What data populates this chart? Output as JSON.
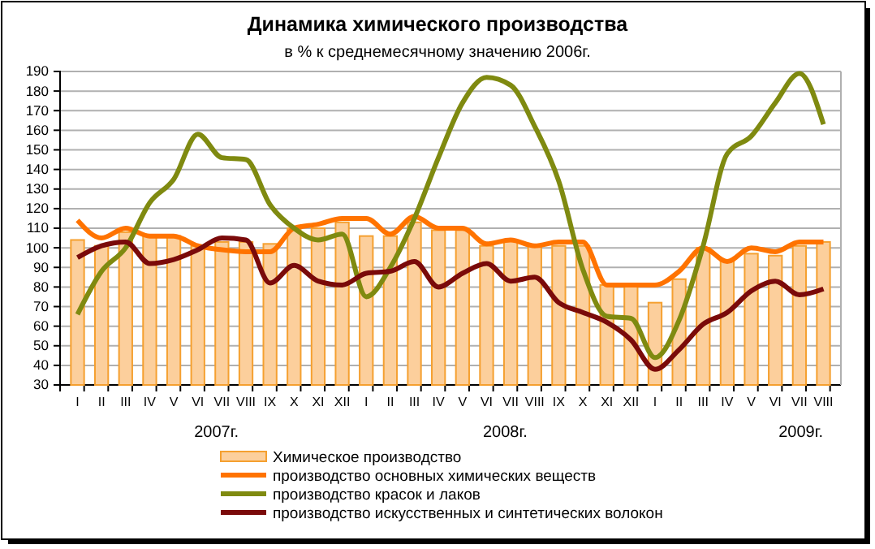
{
  "chart_data": {
    "type": "bar",
    "title": "Динамика химического производства",
    "subtitle": "в % к среднемесячному значению 2006г.",
    "categories": [
      "I",
      "II",
      "III",
      "IV",
      "V",
      "VI",
      "VII",
      "VIII",
      "IX",
      "X",
      "XI",
      "XII",
      "I",
      "II",
      "III",
      "IV",
      "V",
      "VI",
      "VII",
      "VIII",
      "IX",
      "X",
      "XI",
      "XII",
      "I",
      "II",
      "III",
      "IV",
      "V",
      "VI",
      "VII",
      "VIII"
    ],
    "series": [
      {
        "name": "Химическое производство",
        "color": "#fccf9c",
        "values": [
          104,
          101,
          108,
          106,
          106,
          101,
          103,
          103,
          102,
          110,
          110,
          113,
          106,
          106,
          113,
          109,
          109,
          101,
          104,
          101,
          101,
          101,
          81,
          81,
          72,
          84,
          100,
          93,
          97,
          96,
          101,
          103
        ]
      },
      {
        "name": "производство основных химических веществ",
        "type": "line",
        "color": "#ff7300",
        "values": [
          114,
          105,
          110,
          106,
          106,
          101,
          99,
          98,
          98,
          110,
          112,
          115,
          115,
          107,
          116,
          110,
          110,
          102,
          104,
          101,
          103,
          103,
          81,
          81,
          81,
          88,
          100,
          93,
          100,
          98,
          103,
          103
        ]
      },
      {
        "name": "производство красок и лаков",
        "type": "line",
        "color": "#7f8a10",
        "values": [
          66,
          88,
          100,
          123,
          135,
          158,
          146,
          145,
          122,
          110,
          104,
          107,
          75,
          90,
          115,
          146,
          174,
          187,
          183,
          162,
          134,
          89,
          65,
          64,
          44,
          63,
          101,
          148,
          157,
          174,
          189,
          163
        ]
      },
      {
        "name": "производство искусственных и синтетических волокон",
        "type": "line",
        "color": "#7a0a0a",
        "values": [
          95,
          101,
          103,
          92,
          94,
          99,
          105,
          104,
          82,
          91,
          83,
          81,
          87,
          88,
          93,
          80,
          87,
          92,
          83,
          85,
          72,
          67,
          62,
          53,
          38,
          48,
          61,
          67,
          78,
          83,
          76,
          79
        ]
      }
    ],
    "ylim": [
      30,
      190
    ],
    "yticks": [
      30,
      40,
      50,
      60,
      70,
      80,
      90,
      100,
      110,
      120,
      130,
      140,
      150,
      160,
      170,
      180,
      190
    ],
    "grid": "y",
    "legend": "bottom",
    "annotations": [
      "2007г.",
      "2008г.",
      "2009г."
    ]
  }
}
